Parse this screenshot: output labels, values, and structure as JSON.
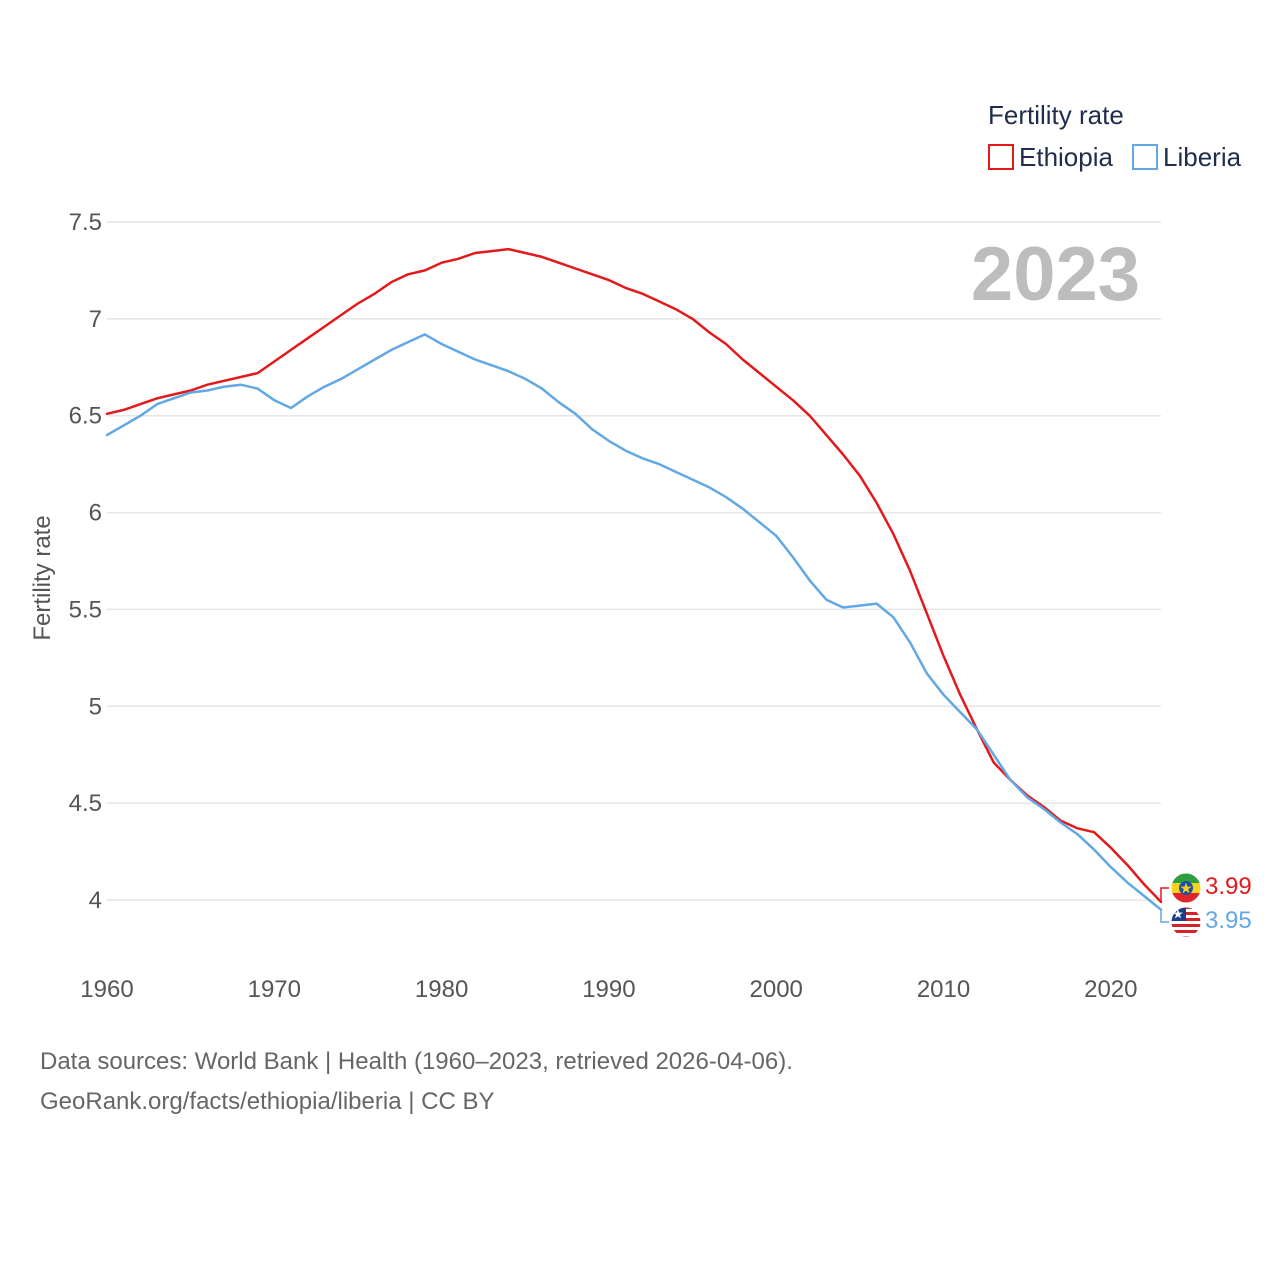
{
  "chart_data": {
    "type": "line",
    "ylabel": "Fertility rate",
    "xlabel": "",
    "ylim": [
      3.8,
      7.5
    ],
    "xlim": [
      1960,
      2023
    ],
    "y_ticks": [
      {
        "value": 4,
        "label": "4"
      },
      {
        "value": 4.5,
        "label": "4.5"
      },
      {
        "value": 5,
        "label": "5"
      },
      {
        "value": 5.5,
        "label": "5.5"
      },
      {
        "value": 6,
        "label": "6"
      },
      {
        "value": 6.5,
        "label": "6.5"
      },
      {
        "value": 7,
        "label": "7"
      },
      {
        "value": 7.5,
        "label": "7.5"
      }
    ],
    "x_ticks": [
      {
        "value": 1960,
        "label": "1960"
      },
      {
        "value": 1970,
        "label": "1970"
      },
      {
        "value": 1980,
        "label": "1980"
      },
      {
        "value": 1990,
        "label": "1990"
      },
      {
        "value": 2000,
        "label": "2000"
      },
      {
        "value": 2010,
        "label": "2010"
      },
      {
        "value": 2020,
        "label": "2020"
      }
    ],
    "legend_title": "Fertility rate",
    "legend_position": "top-right",
    "current_year": "2023",
    "x": [
      1960,
      1961,
      1962,
      1963,
      1964,
      1965,
      1966,
      1967,
      1968,
      1969,
      1970,
      1971,
      1972,
      1973,
      1974,
      1975,
      1976,
      1977,
      1978,
      1979,
      1980,
      1981,
      1982,
      1983,
      1984,
      1985,
      1986,
      1987,
      1988,
      1989,
      1990,
      1991,
      1992,
      1993,
      1994,
      1995,
      1996,
      1997,
      1998,
      1999,
      2000,
      2001,
      2002,
      2003,
      2004,
      2005,
      2006,
      2007,
      2008,
      2009,
      2010,
      2011,
      2012,
      2013,
      2014,
      2015,
      2016,
      2017,
      2018,
      2019,
      2020,
      2021,
      2022,
      2023
    ],
    "series": [
      {
        "name": "Ethiopia",
        "color": "#e31a1c",
        "end_label": "3.99",
        "flag": "ethiopia-flag-icon",
        "values": [
          6.51,
          6.53,
          6.56,
          6.59,
          6.61,
          6.63,
          6.66,
          6.68,
          6.7,
          6.72,
          6.78,
          6.84,
          6.9,
          6.96,
          7.02,
          7.08,
          7.13,
          7.19,
          7.23,
          7.25,
          7.29,
          7.31,
          7.34,
          7.35,
          7.36,
          7.34,
          7.32,
          7.29,
          7.26,
          7.23,
          7.2,
          7.16,
          7.13,
          7.09,
          7.05,
          7.0,
          6.93,
          6.87,
          6.79,
          6.72,
          6.65,
          6.58,
          6.5,
          6.4,
          6.3,
          6.19,
          6.05,
          5.89,
          5.7,
          5.48,
          5.26,
          5.06,
          4.88,
          4.71,
          4.62,
          4.54,
          4.48,
          4.41,
          4.37,
          4.35,
          4.27,
          4.18,
          4.08,
          3.99
        ]
      },
      {
        "name": "Liberia",
        "color": "#62a8e5",
        "end_label": "3.95",
        "flag": "liberia-flag-icon",
        "values": [
          6.4,
          6.45,
          6.5,
          6.56,
          6.59,
          6.62,
          6.63,
          6.65,
          6.66,
          6.64,
          6.58,
          6.54,
          6.6,
          6.65,
          6.69,
          6.74,
          6.79,
          6.84,
          6.88,
          6.92,
          6.87,
          6.83,
          6.79,
          6.76,
          6.73,
          6.69,
          6.64,
          6.57,
          6.51,
          6.43,
          6.37,
          6.32,
          6.28,
          6.25,
          6.21,
          6.17,
          6.13,
          6.08,
          6.02,
          5.95,
          5.88,
          5.77,
          5.65,
          5.55,
          5.51,
          5.52,
          5.53,
          5.46,
          5.33,
          5.17,
          5.06,
          4.97,
          4.88,
          4.75,
          4.62,
          4.53,
          4.47,
          4.4,
          4.34,
          4.26,
          4.17,
          4.09,
          4.02,
          3.95
        ]
      }
    ]
  },
  "source": {
    "line1": "Data sources: World Bank | Health (1960–2023, retrieved 2026-04-06).",
    "line2": "GeoRank.org/facts/ethiopia/liberia | CC BY"
  }
}
